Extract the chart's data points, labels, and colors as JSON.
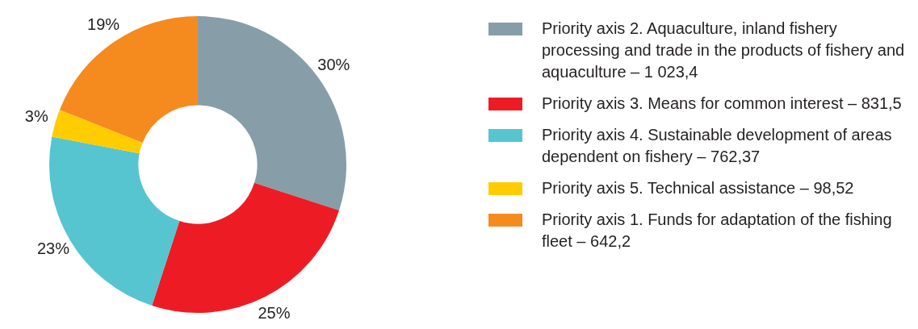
{
  "chart_data": {
    "type": "donut",
    "categories": [
      "Priority axis 2. Aquaculture, inland fishery processing and trade in the products of fishery and aquaculture – 1 023,4",
      "Priority axis 3. Means for common interest – 831,5",
      "Priority axis 4. Sustainable development of areas dependent on fishery – 762,37",
      "Priority axis 5. Technical assistance – 98,52",
      "Priority axis 1. Funds for adaptation of the fishing fleet – 642,2"
    ],
    "values": [
      30,
      25,
      23,
      3,
      19
    ],
    "colors": [
      "#879ea9",
      "#ed1c24",
      "#56c5d0",
      "#ffcc00",
      "#f58a1f"
    ],
    "value_labels": [
      "30%",
      "25%",
      "23%",
      "3%",
      "19%"
    ],
    "legend": "right"
  }
}
